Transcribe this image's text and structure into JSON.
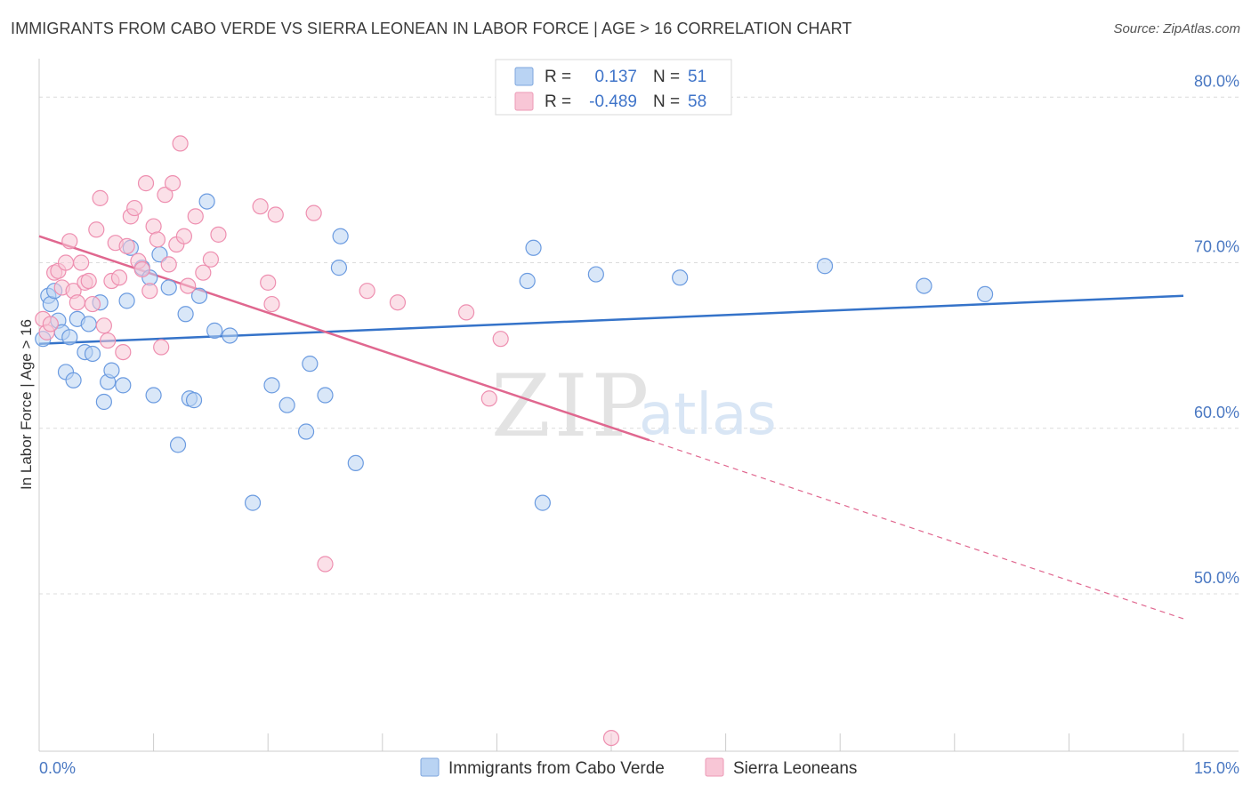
{
  "header": {
    "title": "IMMIGRANTS FROM CABO VERDE VS SIERRA LEONEAN IN LABOR FORCE | AGE > 16 CORRELATION CHART",
    "source": "Source: ZipAtlas.com"
  },
  "watermark": {
    "zip": "ZIP",
    "atlas": "atlas"
  },
  "legend_top": {
    "rows": [
      {
        "r_label": "R =",
        "r_value": "0.137",
        "n_label": "N =",
        "n_value": "51",
        "color": "#a9c8f0"
      },
      {
        "r_label": "R =",
        "r_value": "-0.489",
        "n_label": "N =",
        "n_value": "58",
        "color": "#f5b7cb"
      }
    ]
  },
  "legend_bottom": {
    "items": [
      {
        "label": "Immigrants from Cabo Verde",
        "color": "#a9c8f0"
      },
      {
        "label": "Sierra Leoneans",
        "color": "#f5b7cb"
      }
    ]
  },
  "chart_data": {
    "type": "scatter",
    "title": "IMMIGRANTS FROM CABO VERDE VS SIERRA LEONEAN IN LABOR FORCE | AGE > 16 CORRELATION CHART",
    "xlabel": "",
    "ylabel": "In Labor Force | Age > 16",
    "xlim": [
      0,
      15
    ],
    "ylim": [
      40.5,
      82
    ],
    "x_tick_labels": [
      "0.0%",
      "15.0%"
    ],
    "y_ticks": [
      50,
      60,
      70,
      80
    ],
    "y_tick_labels": [
      "50.0%",
      "60.0%",
      "70.0%",
      "80.0%"
    ],
    "grid": true,
    "legend_position": "top-center",
    "series": [
      {
        "name": "Immigrants from Cabo Verde",
        "color": "#6b9be0",
        "fill": "#b9d3f3",
        "trend": {
          "x": [
            0,
            15
          ],
          "y": [
            65.1,
            68.0
          ],
          "color": "#3573c9",
          "dashed_from": null
        },
        "points": [
          [
            0.05,
            65.4
          ],
          [
            0.12,
            68.0
          ],
          [
            0.15,
            67.5
          ],
          [
            0.2,
            68.3
          ],
          [
            0.25,
            66.5
          ],
          [
            0.3,
            65.8
          ],
          [
            0.35,
            63.4
          ],
          [
            0.4,
            65.5
          ],
          [
            0.45,
            62.9
          ],
          [
            0.5,
            66.6
          ],
          [
            0.6,
            64.6
          ],
          [
            0.65,
            66.3
          ],
          [
            0.7,
            64.5
          ],
          [
            0.8,
            67.6
          ],
          [
            0.85,
            61.6
          ],
          [
            0.9,
            62.8
          ],
          [
            0.95,
            63.5
          ],
          [
            1.1,
            62.6
          ],
          [
            1.15,
            67.7
          ],
          [
            1.2,
            70.9
          ],
          [
            1.35,
            69.7
          ],
          [
            1.45,
            69.1
          ],
          [
            1.5,
            62.0
          ],
          [
            1.58,
            70.5
          ],
          [
            1.7,
            68.5
          ],
          [
            1.82,
            59.0
          ],
          [
            1.92,
            66.9
          ],
          [
            1.97,
            61.8
          ],
          [
            2.03,
            61.7
          ],
          [
            2.1,
            68.0
          ],
          [
            2.2,
            73.7
          ],
          [
            2.3,
            65.9
          ],
          [
            2.5,
            65.6
          ],
          [
            2.8,
            55.5
          ],
          [
            3.05,
            62.6
          ],
          [
            3.25,
            61.4
          ],
          [
            3.5,
            59.8
          ],
          [
            3.55,
            63.9
          ],
          [
            3.75,
            62.0
          ],
          [
            3.93,
            69.7
          ],
          [
            3.95,
            71.6
          ],
          [
            4.15,
            57.9
          ],
          [
            6.4,
            68.9
          ],
          [
            6.48,
            70.9
          ],
          [
            6.6,
            55.5
          ],
          [
            7.3,
            69.3
          ],
          [
            8.4,
            69.1
          ],
          [
            10.3,
            69.8
          ],
          [
            11.6,
            68.6
          ],
          [
            12.4,
            68.1
          ]
        ]
      },
      {
        "name": "Sierra Leoneans",
        "color": "#ee8fb0",
        "fill": "#f8c6d6",
        "trend": {
          "x": [
            0,
            15
          ],
          "y": [
            71.6,
            48.5
          ],
          "color": "#e0678f",
          "dashed_from": 8.0
        },
        "points": [
          [
            0.05,
            66.6
          ],
          [
            0.1,
            65.8
          ],
          [
            0.15,
            66.3
          ],
          [
            0.2,
            69.4
          ],
          [
            0.25,
            69.5
          ],
          [
            0.3,
            68.5
          ],
          [
            0.35,
            70.0
          ],
          [
            0.4,
            71.3
          ],
          [
            0.45,
            68.3
          ],
          [
            0.5,
            67.6
          ],
          [
            0.55,
            70.0
          ],
          [
            0.6,
            68.8
          ],
          [
            0.65,
            68.9
          ],
          [
            0.7,
            67.5
          ],
          [
            0.75,
            72.0
          ],
          [
            0.8,
            73.9
          ],
          [
            0.85,
            66.2
          ],
          [
            0.9,
            65.3
          ],
          [
            0.95,
            68.9
          ],
          [
            1.0,
            71.2
          ],
          [
            1.05,
            69.1
          ],
          [
            1.1,
            64.6
          ],
          [
            1.15,
            71.0
          ],
          [
            1.2,
            72.8
          ],
          [
            1.25,
            73.3
          ],
          [
            1.3,
            70.1
          ],
          [
            1.35,
            69.6
          ],
          [
            1.4,
            74.8
          ],
          [
            1.45,
            68.3
          ],
          [
            1.5,
            72.2
          ],
          [
            1.55,
            71.4
          ],
          [
            1.6,
            64.9
          ],
          [
            1.65,
            74.1
          ],
          [
            1.7,
            69.9
          ],
          [
            1.75,
            74.8
          ],
          [
            1.8,
            71.1
          ],
          [
            1.85,
            77.2
          ],
          [
            1.9,
            71.6
          ],
          [
            1.95,
            68.6
          ],
          [
            2.05,
            72.8
          ],
          [
            2.15,
            69.4
          ],
          [
            2.25,
            70.2
          ],
          [
            2.35,
            71.7
          ],
          [
            2.9,
            73.4
          ],
          [
            3.0,
            68.8
          ],
          [
            3.05,
            67.5
          ],
          [
            3.1,
            72.9
          ],
          [
            3.6,
            73.0
          ],
          [
            3.75,
            51.8
          ],
          [
            4.3,
            68.3
          ],
          [
            4.7,
            67.6
          ],
          [
            5.6,
            67.0
          ],
          [
            5.9,
            61.8
          ],
          [
            6.05,
            65.4
          ],
          [
            7.5,
            41.3
          ]
        ]
      }
    ]
  }
}
